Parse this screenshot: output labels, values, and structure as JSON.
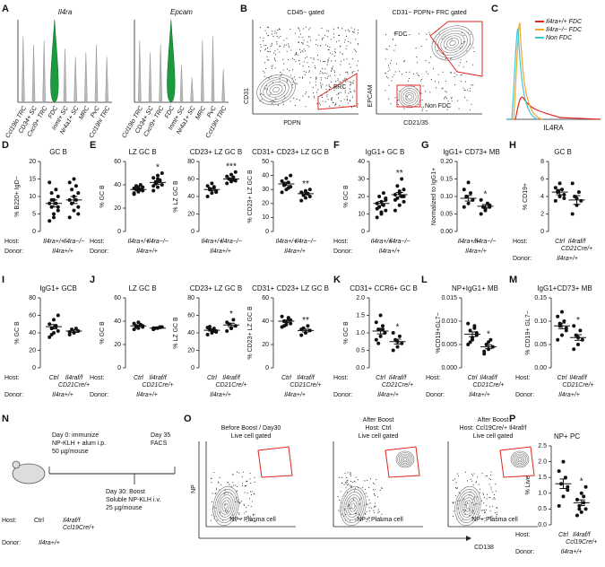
{
  "panel_letters": [
    "A",
    "B",
    "C",
    "D",
    "E",
    "F",
    "G",
    "H",
    "I",
    "J",
    "K",
    "L",
    "M",
    "N",
    "O",
    "P"
  ],
  "labels": {
    "host": "Host:",
    "donor": "Donor:"
  },
  "chart_data": [
    {
      "type": "violin",
      "title": "Il4ra",
      "categories": [
        "Ccl19lo TRC",
        "CD34+ SC",
        "Cxcl9+ TRC",
        "FDC",
        "Inmt+ SC",
        "Nr4a1+ SC",
        "MRC",
        "PvC",
        "Ccl19hi TRC"
      ],
      "values": [
        0.8,
        0.7,
        0.75,
        1.0,
        0.65,
        0.55,
        0.6,
        0.7,
        0.55
      ],
      "highlight_category": "FDC",
      "highlight_color": "#1a9c3e"
    },
    {
      "type": "violin",
      "title": "Epcam",
      "categories": [
        "Ccl19lo TRC",
        "CD34+ SC",
        "Cxcl9+ TRC",
        "FDC",
        "Inmt+ SC",
        "Nr4a1+ SC",
        "MRC",
        "PvC",
        "Ccl19hi TRC"
      ],
      "values": [
        0.75,
        0.6,
        0.7,
        1.0,
        0.45,
        0.3,
        0.75,
        0.8,
        0.4
      ],
      "highlight_category": "FDC",
      "highlight_color": "#1a9c3e"
    },
    {
      "type": "histogram",
      "xlabel": "IL4RA",
      "series": [
        {
          "name": "Il4ra+/+ FDC",
          "color": "#e0241f"
        },
        {
          "name": "Il4ra−/− FDC",
          "color": "#f5a623"
        },
        {
          "name": "Non FDC",
          "color": "#3cc8d8"
        }
      ]
    },
    {
      "type": "dot",
      "title": "GC B",
      "ylabel": "% B220+ IgD−",
      "ylim": [
        0,
        20
      ],
      "yticks": [
        0,
        5,
        10,
        15,
        20
      ],
      "row_labels": true,
      "donor": "Il4ra+/+",
      "groups": [
        {
          "host": [
            "Il4ra+/+"
          ],
          "values": [
            3,
            5,
            6,
            7,
            8,
            8,
            9,
            10,
            11,
            12,
            14,
            4,
            7,
            9
          ],
          "mean": 8,
          "sem": 1
        },
        {
          "host": [
            "Il4ra−/−"
          ],
          "values": [
            4,
            6,
            7,
            8,
            9,
            9,
            10,
            11,
            12,
            13,
            14,
            15,
            5,
            8
          ],
          "mean": 9,
          "sem": 1
        }
      ]
    },
    {
      "type": "dot",
      "title": "LZ GC B",
      "ylabel": "% GC B",
      "ylim": [
        0,
        60
      ],
      "yticks": [
        0,
        20,
        40,
        60
      ],
      "row_labels": true,
      "donor": "Il4ra+/+",
      "groups": [
        {
          "host": [
            "Il4ra+/+"
          ],
          "values": [
            33,
            34,
            35,
            36,
            36,
            37,
            38,
            38,
            39,
            40,
            32,
            35
          ],
          "mean": 36,
          "sem": 1
        },
        {
          "host": [
            "Il4ra−/−"
          ],
          "values": [
            35,
            38,
            40,
            42,
            44,
            46,
            48,
            50,
            41,
            43,
            39,
            45
          ],
          "mean": 42,
          "sem": 1.5,
          "significance": "*"
        }
      ]
    },
    {
      "type": "dot",
      "title": "CD23+ LZ GC B",
      "ylabel": "% LZ GC B",
      "ylim": [
        0,
        80
      ],
      "yticks": [
        0,
        20,
        40,
        60,
        80
      ],
      "donor": "Il4ra+/+",
      "groups": [
        {
          "host": [
            "Il4ra+/+"
          ],
          "values": [
            40,
            44,
            46,
            48,
            50,
            52,
            55,
            45,
            49,
            51
          ],
          "mean": 48,
          "sem": 1.5
        },
        {
          "host": [
            "Il4ra−/−"
          ],
          "values": [
            55,
            57,
            58,
            60,
            62,
            63,
            65,
            68,
            60,
            59
          ],
          "mean": 60,
          "sem": 1.2,
          "significance": "***"
        }
      ]
    },
    {
      "type": "dot",
      "title": "CD31+ CD23+ LZ GC B",
      "ylabel": "% CD23+ LZ GC B",
      "ylim": [
        0,
        50
      ],
      "yticks": [
        0,
        10,
        20,
        30,
        40,
        50
      ],
      "donor": "Il4ra+/+",
      "groups": [
        {
          "host": [
            "Il4ra+/+"
          ],
          "values": [
            28,
            30,
            32,
            34,
            35,
            36,
            38,
            40,
            33,
            31
          ],
          "mean": 34,
          "sem": 1.2
        },
        {
          "host": [
            "Il4ra−/−"
          ],
          "values": [
            22,
            24,
            25,
            26,
            27,
            28,
            29,
            30,
            26,
            27
          ],
          "mean": 27,
          "sem": 0.8,
          "significance": "**"
        }
      ]
    },
    {
      "type": "dot",
      "title": "IgG1+ GC B",
      "ylabel": "% GC B",
      "ylim": [
        0,
        40
      ],
      "yticks": [
        0,
        10,
        20,
        30,
        40
      ],
      "row_labels": true,
      "donor": "Il4ra+/+",
      "groups": [
        {
          "host": [
            "Il4ra+/+"
          ],
          "values": [
            8,
            10,
            12,
            14,
            15,
            16,
            17,
            18,
            20,
            22,
            13,
            11,
            19
          ],
          "mean": 16,
          "sem": 1.2
        },
        {
          "host": [
            "Il4ra−/−"
          ],
          "values": [
            12,
            15,
            17,
            19,
            20,
            21,
            22,
            24,
            26,
            30,
            18,
            23,
            20
          ],
          "mean": 21,
          "sem": 1.3,
          "significance": "**"
        }
      ]
    },
    {
      "type": "dot",
      "title": "IgG1+ CD73+ MB",
      "ylabel": "Normalized to IgG1+",
      "ylim": [
        0,
        0.2
      ],
      "yticks": [
        {
          "value": 0,
          "label": "0.00"
        },
        0.05,
        {
          "value": 0.1,
          "label": "0.10"
        },
        0.15,
        {
          "value": 0.2,
          "label": "0.20"
        }
      ],
      "donor": "Il4ra+/+",
      "groups": [
        {
          "host": [
            "Il4ra+/+"
          ],
          "values": [
            0.07,
            0.08,
            0.09,
            0.1,
            0.11,
            0.12,
            0.14,
            0.09
          ],
          "mean": 0.095,
          "sem": 0.008
        },
        {
          "host": [
            "Il4ra−/−"
          ],
          "values": [
            0.05,
            0.06,
            0.07,
            0.07,
            0.08,
            0.09,
            0.065,
            0.075
          ],
          "mean": 0.072,
          "sem": 0.005,
          "significance": "*"
        }
      ]
    },
    {
      "type": "dot",
      "title": "GC B",
      "ylabel": "% CD19+",
      "ylim": [
        0,
        8
      ],
      "yticks": [
        0,
        2,
        4,
        6,
        8
      ],
      "row_labels": true,
      "donor": "Il4ra+/+",
      "groups": [
        {
          "host": [
            "Ctrl"
          ],
          "values": [
            3.5,
            4,
            4.2,
            4.5,
            4.8,
            5,
            5.5,
            3.8,
            4.6
          ],
          "mean": 4.5,
          "sem": 0.3
        },
        {
          "host": [
            "Il4raf/f",
            "CD21Cre/+"
          ],
          "values": [
            2,
            3,
            3.5,
            4,
            4.5,
            5.5,
            3.8
          ],
          "mean": 3.6,
          "sem": 0.5
        }
      ]
    },
    {
      "type": "dot",
      "title": "IgG1+ GCB",
      "ylabel": "% GC B",
      "ylim": [
        0,
        80
      ],
      "yticks": [
        0,
        20,
        40,
        60,
        80
      ],
      "row_labels": true,
      "donor": "Il4ra+/+",
      "groups": [
        {
          "host": [
            "Ctrl"
          ],
          "values": [
            35,
            40,
            42,
            45,
            48,
            50,
            55,
            60,
            38,
            47
          ],
          "mean": 47,
          "sem": 2.5
        },
        {
          "host": [
            "Il4raf/f",
            "CD21Cre/+"
          ],
          "values": [
            38,
            40,
            42,
            44,
            45,
            41
          ],
          "mean": 42,
          "sem": 1.5
        }
      ]
    },
    {
      "type": "dot",
      "title": "LZ GC B",
      "ylabel": "% GC B",
      "ylim": [
        0,
        60
      ],
      "yticks": [
        0,
        20,
        40,
        60
      ],
      "row_labels": true,
      "donor": "Il4ra+/+",
      "groups": [
        {
          "host": [
            "Ctrl"
          ],
          "values": [
            33,
            34,
            35,
            36,
            37,
            38,
            39,
            36,
            35,
            37
          ],
          "mean": 36,
          "sem": 0.6
        },
        {
          "host": [
            "Il4raf/f",
            "CD21Cre/+"
          ],
          "values": [
            33,
            34,
            35,
            34,
            35,
            34
          ],
          "mean": 34,
          "sem": 0.4
        }
      ]
    },
    {
      "type": "dot",
      "title": "CD23+ LZ GC B",
      "ylabel": "% LZ GC B",
      "ylim": [
        0,
        80
      ],
      "yticks": [
        0,
        20,
        40,
        60,
        80
      ],
      "donor": "Il4ra+/+",
      "groups": [
        {
          "host": [
            "Ctrl"
          ],
          "values": [
            38,
            40,
            42,
            44,
            45,
            46,
            43,
            41,
            47,
            42
          ],
          "mean": 43,
          "sem": 1
        },
        {
          "host": [
            "Il4raf/f",
            "CD21Cre/+"
          ],
          "values": [
            42,
            45,
            48,
            50,
            55,
            52
          ],
          "mean": 49,
          "sem": 2,
          "significance": "*"
        }
      ]
    },
    {
      "type": "dot",
      "title": "CD31+ CD23+ LZ GC B",
      "ylabel": "% CD23+ LZ GC B",
      "ylim": [
        0,
        60
      ],
      "yticks": [
        0,
        20,
        40,
        60
      ],
      "donor": "Il4ra+/+",
      "groups": [
        {
          "host": [
            "Ctrl"
          ],
          "values": [
            35,
            37,
            38,
            40,
            42,
            44,
            39,
            41,
            36,
            43
          ],
          "mean": 40,
          "sem": 1
        },
        {
          "host": [
            "Il4raf/f",
            "CD21Cre/+"
          ],
          "values": [
            28,
            30,
            32,
            34,
            36,
            33
          ],
          "mean": 32,
          "sem": 1.2,
          "significance": "**"
        }
      ]
    },
    {
      "type": "dot",
      "title": "CD31+ CCR6+ GC B",
      "ylabel": "% GC B",
      "ylim": [
        0,
        2
      ],
      "yticks": [
        {
          "value": 0,
          "label": "0.0"
        },
        0.5,
        {
          "value": 1,
          "label": "1.0"
        },
        1.5,
        {
          "value": 2,
          "label": "2.0"
        }
      ],
      "row_labels": true,
      "donor": "Il4ra+/+",
      "groups": [
        {
          "host": [
            "Ctrl"
          ],
          "values": [
            0.8,
            0.9,
            1,
            1.1,
            1.2,
            1.3,
            1.5,
            1,
            0.7,
            1.1
          ],
          "mean": 1.05,
          "sem": 0.08
        },
        {
          "host": [
            "Il4raf/f",
            "CD21Cre/+"
          ],
          "values": [
            0.5,
            0.6,
            0.7,
            0.8,
            0.9,
            1,
            0.75
          ],
          "mean": 0.75,
          "sem": 0.07,
          "significance": "*"
        }
      ]
    },
    {
      "type": "dot",
      "title": "NP+IgG1+ MB",
      "ylabel": "%CD19+GL7−",
      "ylim": [
        0,
        0.015
      ],
      "yticks": [
        {
          "value": 0,
          "label": "0.000"
        },
        0.005,
        {
          "value": 0.01,
          "label": "0.010"
        },
        0.015
      ],
      "row_labels": true,
      "donor": "Il4ra+/+",
      "groups": [
        {
          "host": [
            "Ctrl"
          ],
          "values": [
            0.005,
            0.006,
            0.007,
            0.008,
            0.009,
            0.0095,
            0.0065,
            0.0075,
            0.0055,
            0.0085
          ],
          "mean": 0.0072,
          "sem": 0.0005
        },
        {
          "host": [
            "Il4raf/f",
            "CD21Cre/+"
          ],
          "values": [
            0.003,
            0.004,
            0.0045,
            0.005,
            0.006,
            0.0035,
            0.0055
          ],
          "mean": 0.0045,
          "sem": 0.0004,
          "significance": "*"
        }
      ]
    },
    {
      "type": "dot",
      "title": "IgG1+CD73+ MB",
      "ylabel": "% CD19+ GL7−",
      "ylim": [
        0,
        0.15
      ],
      "yticks": [
        {
          "value": 0,
          "label": "0.00"
        },
        0.05,
        {
          "value": 0.1,
          "label": "0.10"
        },
        0.15
      ],
      "row_labels": true,
      "donor": "Il4ra+/+",
      "groups": [
        {
          "host": [
            "Ctrl"
          ],
          "values": [
            0.06,
            0.07,
            0.08,
            0.09,
            0.1,
            0.11,
            0.12,
            0.085,
            0.095
          ],
          "mean": 0.09,
          "sem": 0.006
        },
        {
          "host": [
            "Il4raf/f",
            "CD21Cre/+"
          ],
          "values": [
            0.04,
            0.05,
            0.06,
            0.07,
            0.08,
            0.09,
            0.065
          ],
          "mean": 0.065,
          "sem": 0.006,
          "significance": "*"
        }
      ]
    },
    {
      "type": "dot",
      "title": "NP+ PC",
      "ylabel": "% Live",
      "ylim": [
        0,
        2.5
      ],
      "yticks": [
        {
          "value": 0,
          "label": "0.0"
        },
        0.5,
        {
          "value": 1,
          "label": "1.0"
        },
        1.5,
        {
          "value": 2,
          "label": "2.0"
        },
        2.5
      ],
      "row_labels": true,
      "donor": "Il4ra+/+",
      "groups": [
        {
          "host": [
            "Ctrl"
          ],
          "values": [
            0.6,
            0.9,
            1.1,
            1.3,
            1.5,
            1.7,
            2,
            1.2
          ],
          "mean": 1.3,
          "sem": 0.15
        },
        {
          "host": [
            "Il4raf/f",
            "Ccl19Cre/+"
          ],
          "values": [
            0.3,
            0.4,
            0.5,
            0.6,
            0.7,
            0.8,
            1,
            1.2,
            0.5,
            0.9
          ],
          "mean": 0.7,
          "sem": 0.09,
          "significance": "*"
        }
      ]
    }
  ],
  "flow": {
    "B": [
      {
        "title": "CD45− gated",
        "gate_labels": [
          "FRC"
        ],
        "xlabel": "PDPN",
        "ylabel": "CD31"
      },
      {
        "title": "CD31− PDPN+ FRC gated",
        "gate_labels": [
          "FDC",
          "Non FDC"
        ],
        "xlabel": "CD21/35",
        "ylabel": "EPCAM"
      }
    ],
    "O": {
      "plots": [
        {
          "title": [
            "Before Boost / Day30",
            "Live cell gated"
          ],
          "gate_label": "NP+ Plasma cell"
        },
        {
          "title": [
            "After Boost",
            "Host: Ctrl",
            "Live cell gated"
          ],
          "gate_label": "NP+ Plasma cell"
        },
        {
          "title": [
            "After Boost",
            "Host: Ccl19Cre/+ Il4raf/f",
            "Live cell gated"
          ],
          "gate_label": "NP+ Plasma cell"
        }
      ],
      "xlabel": "CD138",
      "ylabel": "NP"
    }
  },
  "schematic": {
    "steps": [
      [
        "Day 0: immunize",
        "NP-KLH + alum i.p.",
        "50 µg/mouse"
      ],
      [
        "Day 35",
        "FACS"
      ],
      [
        "Day 30: Boost",
        "Soluble NP-KLH i.v.",
        "25 µg/mouse"
      ]
    ],
    "host": [
      [
        "Ctrl"
      ],
      [
        "Il4raf/f",
        "Ccl19Cre/+"
      ]
    ],
    "donor": "Il4ra+/+"
  }
}
